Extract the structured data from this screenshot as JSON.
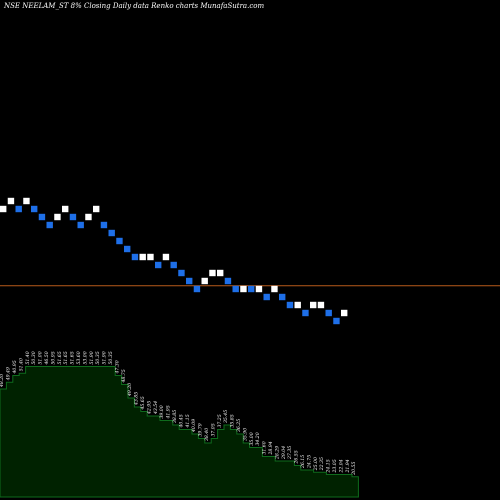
{
  "chart_data": {
    "type": "renko",
    "title": "NSE NEELAM_ST 8% Closing Daily data Renko charts MunafaSutra.com",
    "reference_line_value": 37.6,
    "colors": {
      "background": "#000000",
      "up_brick": "#ffffff",
      "down_brick": "#1e6fe8",
      "reference_line": "#b85a1a",
      "area_fill": "#002200",
      "area_line": "#0e6b1c"
    },
    "bricks": [
      {
        "dir": "up",
        "y": 42.4
      },
      {
        "dir": "up",
        "y": 42.9
      },
      {
        "dir": "down",
        "y": 42.4
      },
      {
        "dir": "up",
        "y": 42.9
      },
      {
        "dir": "down",
        "y": 42.4
      },
      {
        "dir": "down",
        "y": 41.9
      },
      {
        "dir": "down",
        "y": 41.4
      },
      {
        "dir": "up",
        "y": 41.9
      },
      {
        "dir": "up",
        "y": 42.4
      },
      {
        "dir": "down",
        "y": 41.9
      },
      {
        "dir": "down",
        "y": 41.4
      },
      {
        "dir": "up",
        "y": 41.9
      },
      {
        "dir": "up",
        "y": 42.4
      },
      {
        "dir": "down",
        "y": 41.4
      },
      {
        "dir": "down",
        "y": 40.9
      },
      {
        "dir": "down",
        "y": 40.4
      },
      {
        "dir": "down",
        "y": 39.9
      },
      {
        "dir": "down",
        "y": 39.4
      },
      {
        "dir": "up",
        "y": 39.4
      },
      {
        "dir": "up",
        "y": 39.4
      },
      {
        "dir": "down",
        "y": 38.9
      },
      {
        "dir": "up",
        "y": 39.4
      },
      {
        "dir": "down",
        "y": 38.9
      },
      {
        "dir": "down",
        "y": 38.4
      },
      {
        "dir": "down",
        "y": 37.9
      },
      {
        "dir": "down",
        "y": 37.4
      },
      {
        "dir": "up",
        "y": 37.9
      },
      {
        "dir": "up",
        "y": 38.4
      },
      {
        "dir": "up",
        "y": 38.4
      },
      {
        "dir": "down",
        "y": 37.9
      },
      {
        "dir": "down",
        "y": 37.4
      },
      {
        "dir": "up",
        "y": 37.4
      },
      {
        "dir": "down",
        "y": 37.4
      },
      {
        "dir": "up",
        "y": 37.4
      },
      {
        "dir": "down",
        "y": 36.9
      },
      {
        "dir": "up",
        "y": 37.4
      },
      {
        "dir": "down",
        "y": 36.9
      },
      {
        "dir": "down",
        "y": 36.4
      },
      {
        "dir": "up",
        "y": 36.4
      },
      {
        "dir": "down",
        "y": 35.9
      },
      {
        "dir": "up",
        "y": 36.4
      },
      {
        "dir": "up",
        "y": 36.4
      },
      {
        "dir": "down",
        "y": 35.9
      },
      {
        "dir": "down",
        "y": 35.4
      },
      {
        "dir": "up",
        "y": 35.9
      }
    ],
    "volume_area": {
      "values": [
        48,
        51,
        54,
        55,
        58,
        58,
        58,
        58,
        58,
        58,
        58,
        58,
        58,
        58,
        58,
        58,
        58,
        58,
        54,
        50,
        44,
        40,
        38,
        36,
        36,
        34,
        34,
        32,
        30,
        30,
        28,
        26,
        24,
        26,
        30,
        32,
        30,
        28,
        24,
        22,
        22,
        18,
        18,
        16,
        16,
        16,
        14,
        12,
        12,
        11,
        11,
        10,
        10,
        10,
        10,
        9
      ],
      "labels": [
        "48.20",
        "49.49",
        "40.95",
        "51.40",
        "51.40",
        "50.30",
        "51.00",
        "46.50",
        "50.95",
        "51.65",
        "51.65",
        "51.65",
        "53.60",
        "53.00",
        "51.90",
        "50.35",
        "51.90",
        "50.35",
        "47.30",
        "48.75",
        "49.20",
        "43.85",
        "45.65",
        "42.95",
        "43.54",
        "39.00",
        "41.95",
        "38.85",
        "40.45",
        "41.15",
        "40.09",
        "39.79",
        "38.40",
        "37.05",
        "37.25",
        "35.45",
        "35.85",
        "36.25",
        "35.90",
        "35.00",
        "34.20",
        "31.60",
        "28.94",
        "28.29",
        "29.04",
        "27.35",
        "26.55",
        "26.15",
        "24.75",
        "25.00",
        "22.35",
        "24.15",
        "23.05",
        "22.04",
        "21.94",
        "20.55"
      ]
    }
  }
}
